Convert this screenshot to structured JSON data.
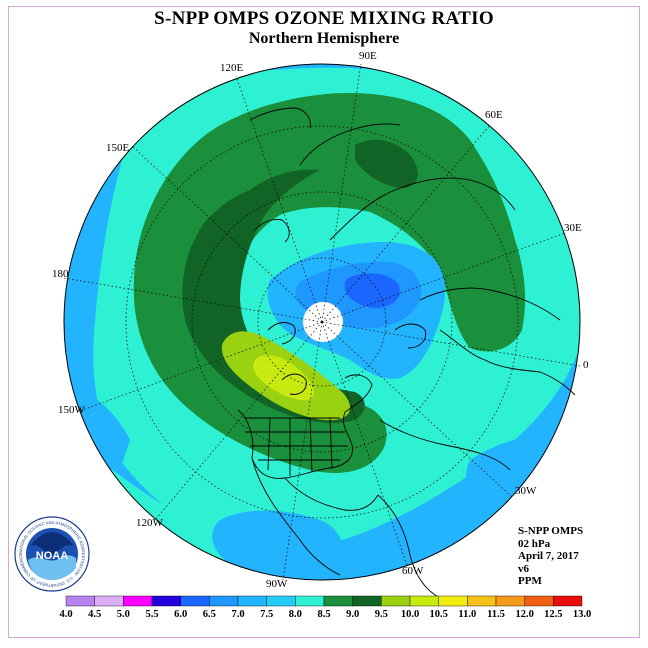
{
  "title": "S-NPP OMPS OZONE MIXING RATIO",
  "subtitle": "Northern Hemisphere",
  "longitude_labels": [
    "90E",
    "60E",
    "30E",
    "0",
    "30W",
    "60W",
    "90W",
    "120W",
    "150W",
    "180",
    "150E",
    "120E"
  ],
  "info": {
    "instrument": "S-NPP OMPS",
    "pressure": "02 hPa",
    "date": "April 7, 2017",
    "version": "v6",
    "units": "PPM"
  },
  "logo": {
    "text": "NOAA",
    "ring_text": "NATIONAL OCEANIC AND ATMOSPHERIC ADMINISTRATION · U.S. DEPARTMENT OF COMMERCE"
  },
  "colorbar": {
    "labels": [
      "4.0",
      "4.5",
      "5.0",
      "5.5",
      "6.0",
      "6.5",
      "7.0",
      "7.5",
      "8.0",
      "8.5",
      "9.0",
      "9.5",
      "10.0",
      "10.5",
      "11.0",
      "11.5",
      "12.0",
      "12.5",
      "13.0"
    ],
    "colors": [
      "#b783f0",
      "#d9aef5",
      "#ff00ff",
      "#2200dd",
      "#1a66ff",
      "#1e98ff",
      "#22b4ff",
      "#25ccf5",
      "#2ef0d2",
      "#1a8f3c",
      "#126326",
      "#9ad212",
      "#c9ea10",
      "#f2ec10",
      "#f5c318",
      "#f59a1a",
      "#f05e14",
      "#e80e0e",
      "#8b5a3c"
    ]
  },
  "chart_data": {
    "type": "heatmap",
    "title": "S-NPP OMPS OZONE MIXING RATIO",
    "subtitle": "Northern Hemisphere",
    "units": "PPM",
    "pressure": "02 hPa",
    "date": "April 7, 2017",
    "projection": "north polar stereographic",
    "scale_min": 4.0,
    "scale_max": 13.0,
    "scale_step": 0.5,
    "features": [
      {
        "region": "outer low-latitude ring",
        "value_range": [
          7.0,
          7.5
        ]
      },
      {
        "region": "mid-latitude band",
        "value_range": [
          8.0,
          8.5
        ]
      },
      {
        "region": "horseshoe maximum band over Pacific/Siberia/Arctic",
        "value_range": [
          8.5,
          9.0
        ]
      },
      {
        "region": "core over northern Canada",
        "value_range": [
          9.5,
          10.0
        ]
      },
      {
        "region": "minimum over Arctic / Scandinavia",
        "value_range": [
          6.0,
          6.5
        ]
      },
      {
        "region": "no data at pole",
        "value_range": null
      }
    ]
  },
  "colors": {
    "frame": "#d8a6d8",
    "no_data": "#ffffff"
  }
}
